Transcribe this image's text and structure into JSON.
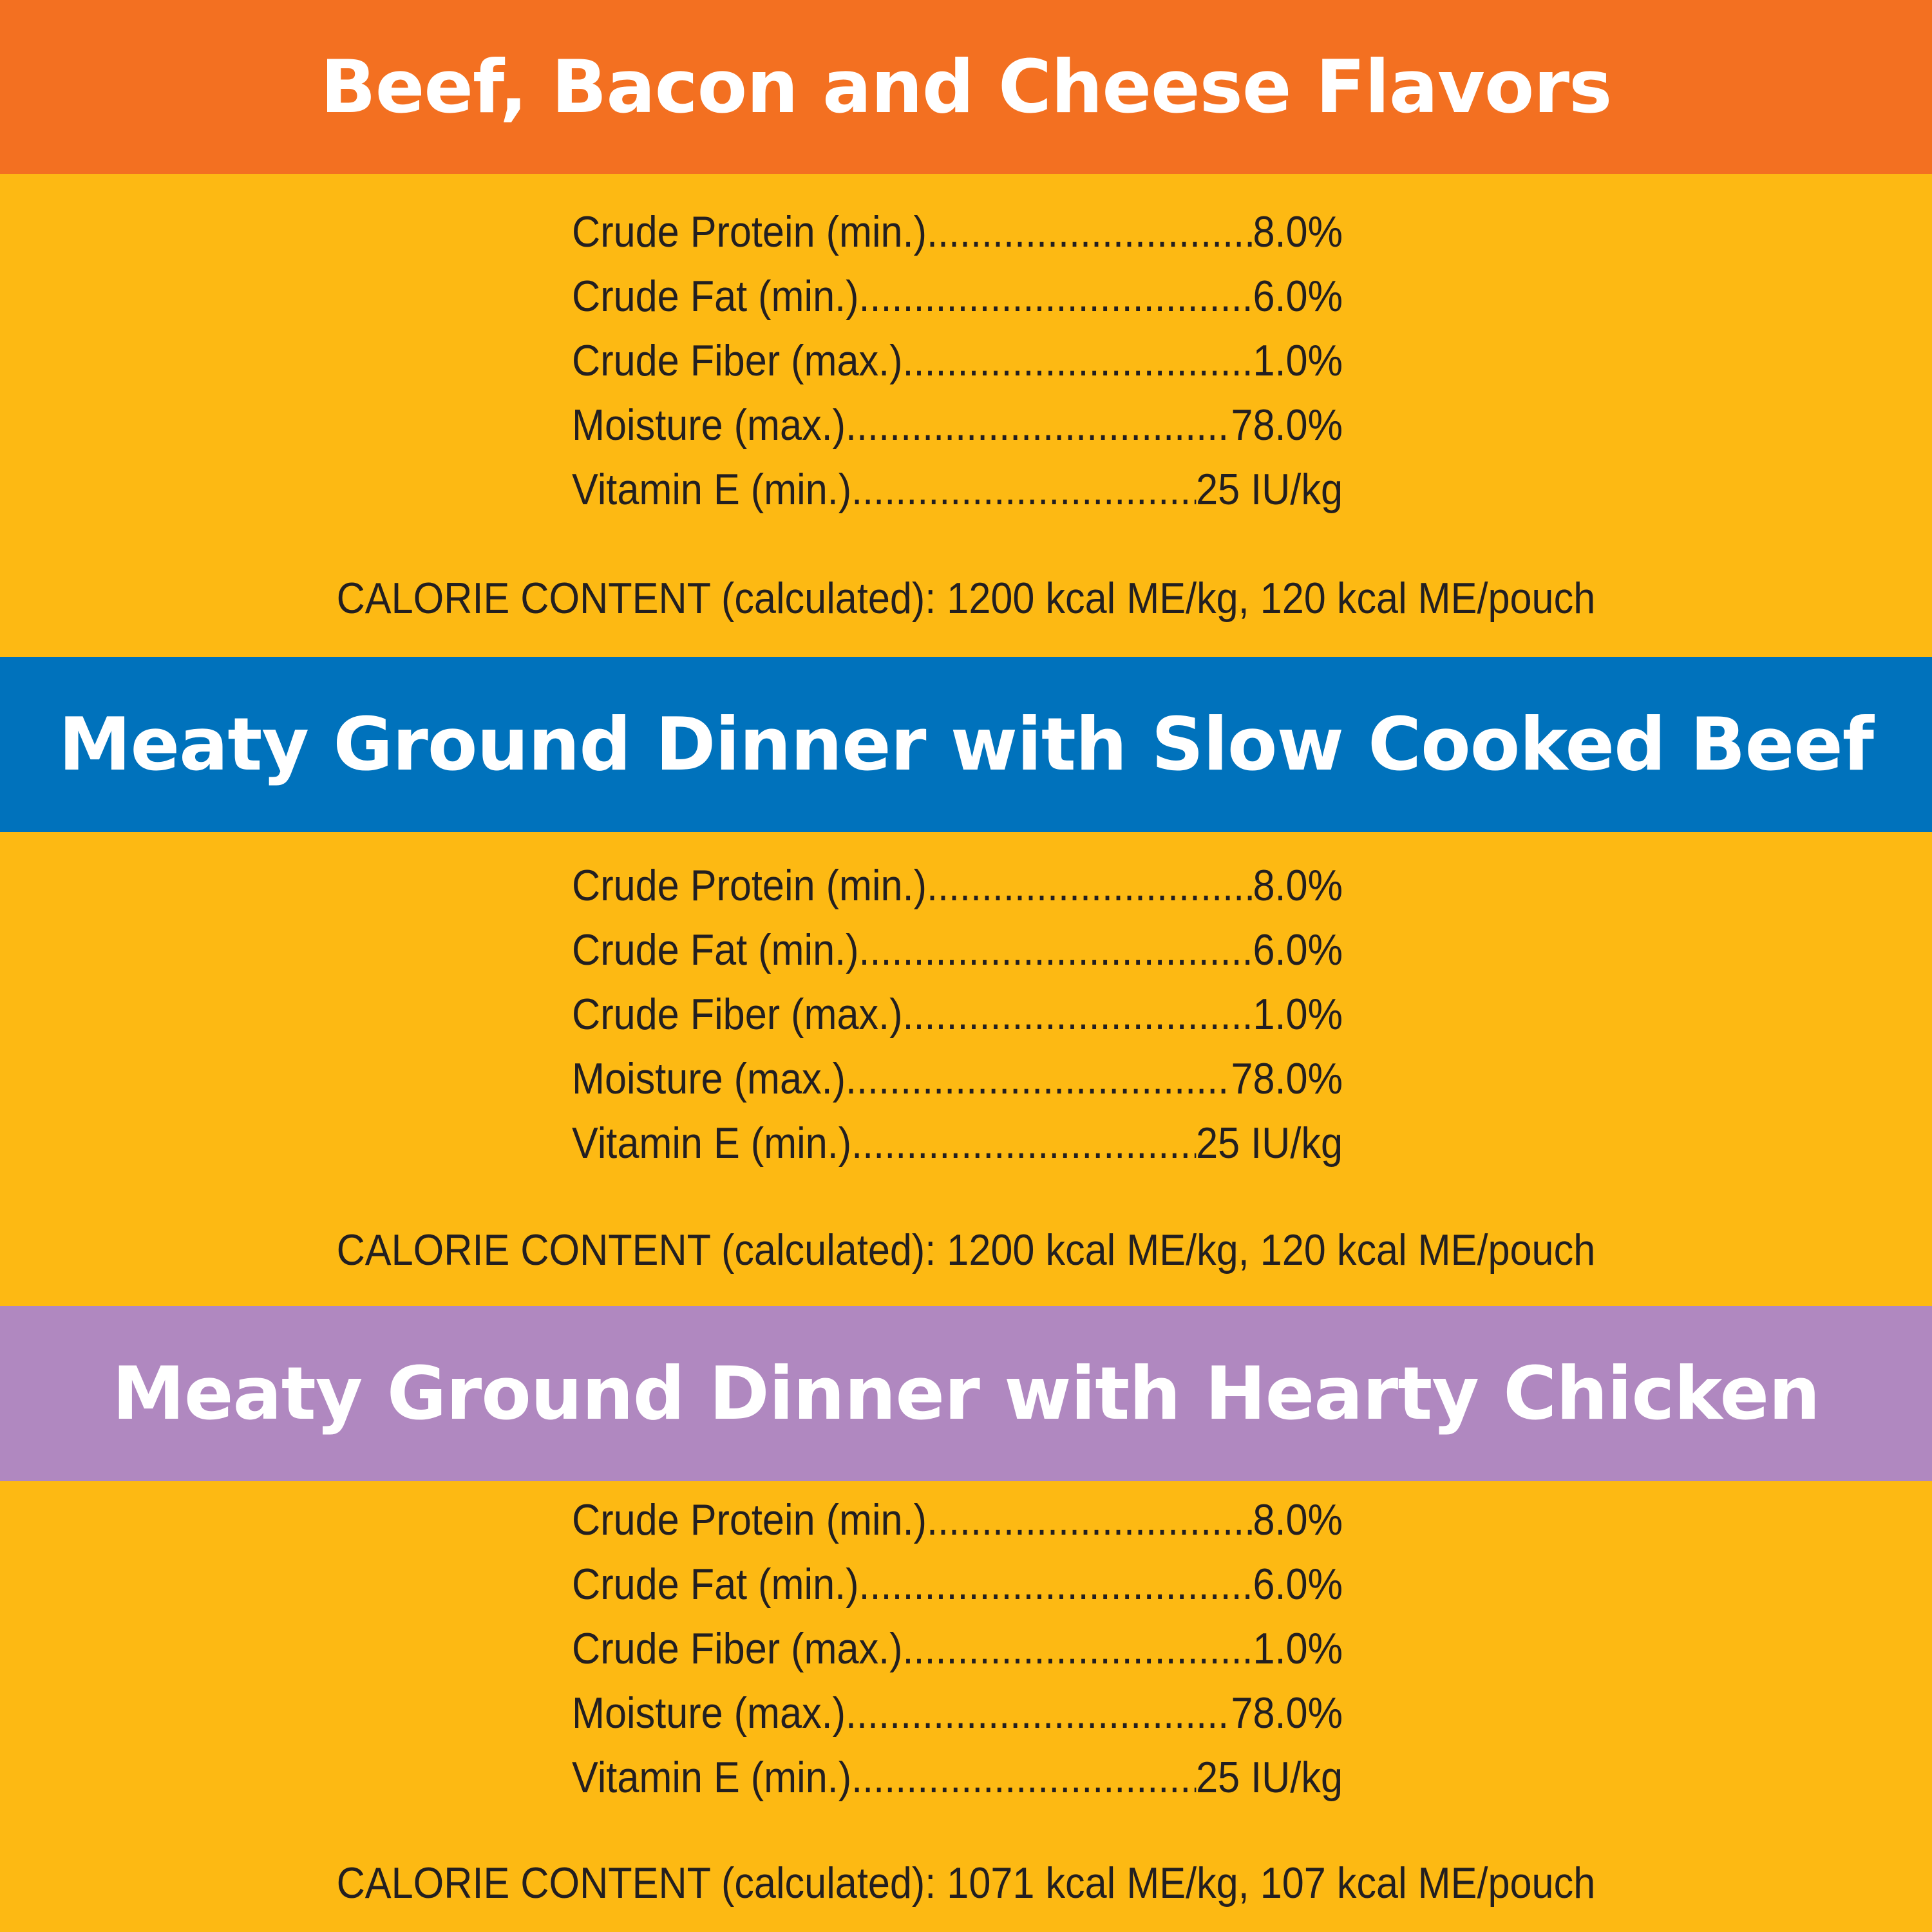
{
  "colors": {
    "background": "#fdb913",
    "banner_1": "#f37021",
    "banner_2": "#0072bc",
    "banner_3": "#b088c0",
    "text": "#231f20"
  },
  "sections": [
    {
      "title": "Beef, Bacon and Cheese Flavors",
      "rows": [
        {
          "label": "Crude Protein (min.)",
          "value": "8.0%"
        },
        {
          "label": "Crude Fat (min.)",
          "value": "6.0%"
        },
        {
          "label": "Crude Fiber (max.)",
          "value": "1.0%"
        },
        {
          "label": "Moisture (max.)",
          "value": "78.0%"
        },
        {
          "label": "Vitamin E (min.)",
          "value": "25 IU/kg"
        }
      ],
      "calorie": "CALORIE CONTENT (calculated): 1200 kcal ME/kg, 120 kcal ME/pouch"
    },
    {
      "title": "Meaty Ground Dinner with Slow Cooked Beef",
      "rows": [
        {
          "label": "Crude Protein (min.)",
          "value": "8.0%"
        },
        {
          "label": "Crude Fat (min.)",
          "value": "6.0%"
        },
        {
          "label": "Crude Fiber (max.)",
          "value": "1.0%"
        },
        {
          "label": "Moisture (max.)",
          "value": "78.0%"
        },
        {
          "label": "Vitamin E (min.)",
          "value": "25 IU/kg"
        }
      ],
      "calorie": "CALORIE CONTENT (calculated): 1200 kcal ME/kg, 120 kcal ME/pouch"
    },
    {
      "title": "Meaty Ground Dinner with Hearty Chicken",
      "rows": [
        {
          "label": "Crude Protein (min.)",
          "value": "8.0%"
        },
        {
          "label": "Crude Fat (min.)",
          "value": "6.0%"
        },
        {
          "label": "Crude Fiber (max.)",
          "value": "1.0%"
        },
        {
          "label": "Moisture (max.)",
          "value": "78.0%"
        },
        {
          "label": "Vitamin E (min.)",
          "value": "25 IU/kg"
        }
      ],
      "calorie": "CALORIE CONTENT (calculated): 1071 kcal ME/kg, 107 kcal ME/pouch"
    }
  ]
}
